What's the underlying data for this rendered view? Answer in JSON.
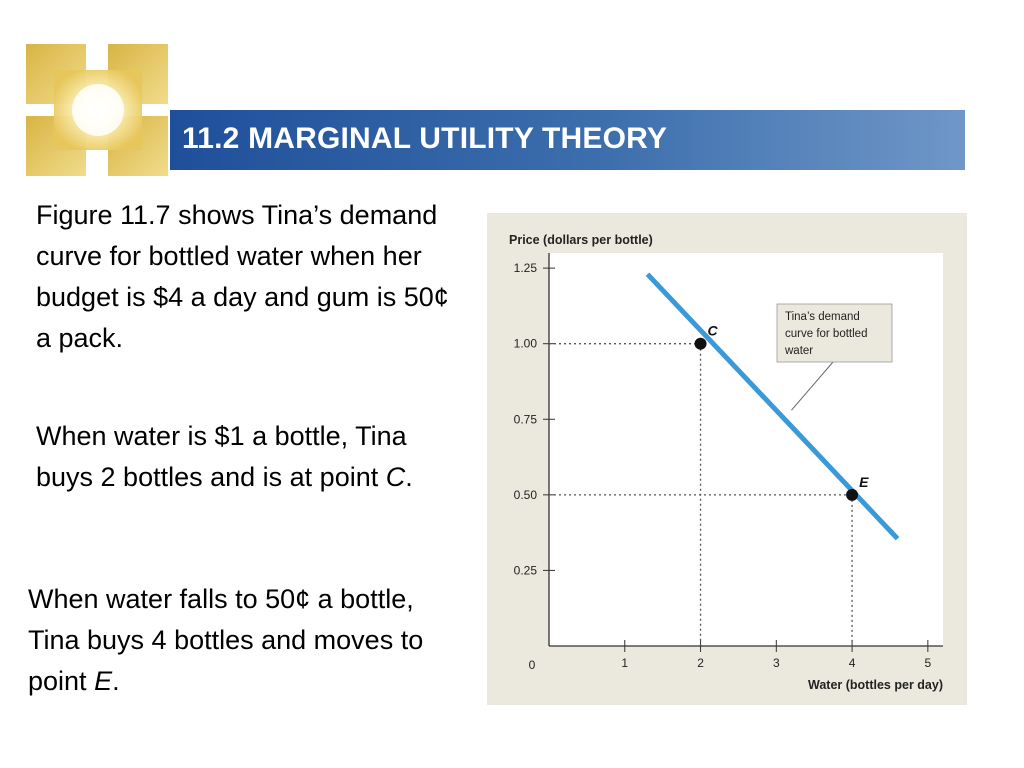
{
  "slide": {
    "title": "11.2 MARGINAL UTILITY THEORY",
    "paragraph1": "Figure 11.7 shows Tina’s demand curve for bottled water when her budget is $4 a day and gum is 50¢ a pack.",
    "paragraph2_pre": "When water is $1 a bottle, Tina buys 2 bottles and is at point ",
    "paragraph2_em": "C",
    "paragraph2_post": ".",
    "paragraph3_pre": "When water falls to 50¢ a bottle, Tina buys 4 bottles and moves to point ",
    "paragraph3_em": "E",
    "paragraph3_post": "."
  },
  "chart_data": {
    "type": "line",
    "title": "",
    "xlabel": "Water (bottles per day)",
    "ylabel": "Price (dollars per bottle)",
    "xlim": [
      0,
      5.2
    ],
    "ylim": [
      0,
      1.3
    ],
    "x_ticks": [
      "1",
      "2",
      "3",
      "4",
      "5"
    ],
    "y_ticks": [
      "0.25",
      "0.50",
      "0.75",
      "1.00",
      "1.25"
    ],
    "origin_label": "0",
    "grid": false,
    "series": [
      {
        "name": "",
        "color": "#3a9ad9",
        "x": [
          1.3,
          4.6
        ],
        "y": [
          1.23,
          0.355
        ]
      }
    ],
    "points": [
      {
        "label": "C",
        "x": 2,
        "y": 1.0
      },
      {
        "label": "E",
        "x": 4,
        "y": 0.5
      }
    ],
    "callout_lines": [
      "Tina’s demand",
      "curve for bottled",
      "water"
    ]
  }
}
